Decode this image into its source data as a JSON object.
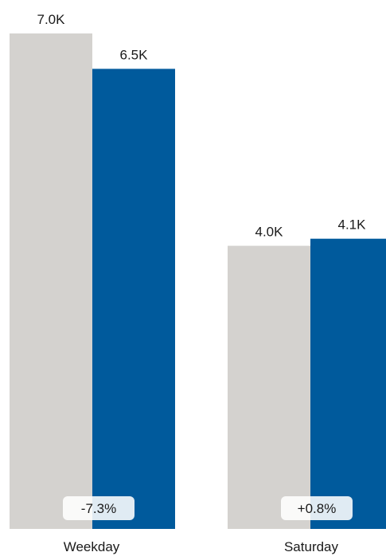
{
  "chart_data": {
    "type": "bar",
    "categories": [
      "Weekday",
      "Saturday"
    ],
    "series": [
      {
        "values": [
          7.0,
          4.0
        ],
        "labels": [
          "7.0K",
          "4.0K"
        ],
        "color": "#d4d2cf"
      },
      {
        "values": [
          6.5,
          4.1
        ],
        "labels": [
          "6.5K",
          "4.1K"
        ],
        "color": "#005a9c"
      }
    ],
    "changes": [
      "-7.3%",
      "+0.8%"
    ],
    "ylim": [
      0,
      7.0
    ],
    "grid": false,
    "legend": "none"
  }
}
